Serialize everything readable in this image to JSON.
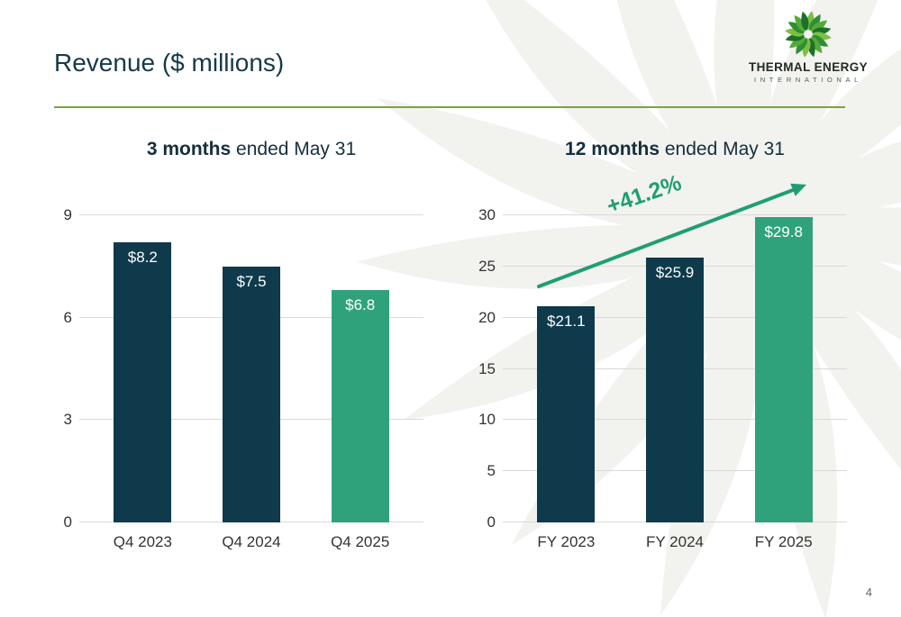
{
  "slide": {
    "title": "Revenue ($ millions)",
    "page_number": "4"
  },
  "logo": {
    "line1": "THERMAL ENERGY",
    "line2": "INTERNATIONAL"
  },
  "colors": {
    "dark_bar": "#0e3a4c",
    "green_bar": "#2fa27c",
    "accent_green": "#1f9e74",
    "rule_green": "#7ca43c",
    "title_text": "#16394b",
    "axis_text": "#333333",
    "gridline": "#d9d9d9"
  },
  "chart_data": [
    {
      "type": "bar",
      "title_bold": "3 months ",
      "title_rest": "ended May 31",
      "categories": [
        "Q4 2023",
        "Q4 2024",
        "Q4 2025"
      ],
      "values": [
        8.2,
        7.5,
        6.8
      ],
      "value_labels": [
        "$8.2",
        "$7.5",
        "$6.8"
      ],
      "bar_colors": [
        "dark",
        "dark",
        "green"
      ],
      "yticks": [
        0,
        3,
        6,
        9
      ],
      "ylim": [
        0,
        9
      ],
      "grid": true,
      "legend": "none"
    },
    {
      "type": "bar",
      "title_bold": "12 months ",
      "title_rest": "ended May 31",
      "categories": [
        "FY 2023",
        "FY 2024",
        "FY 2025"
      ],
      "values": [
        21.1,
        25.9,
        29.8
      ],
      "value_labels": [
        "$21.1",
        "$25.9",
        "$29.8"
      ],
      "bar_colors": [
        "dark",
        "dark",
        "green"
      ],
      "yticks": [
        0,
        5,
        10,
        15,
        20,
        25,
        30
      ],
      "ylim": [
        0,
        30
      ],
      "grid": true,
      "annotation": "+41.2%",
      "legend": "none"
    }
  ]
}
